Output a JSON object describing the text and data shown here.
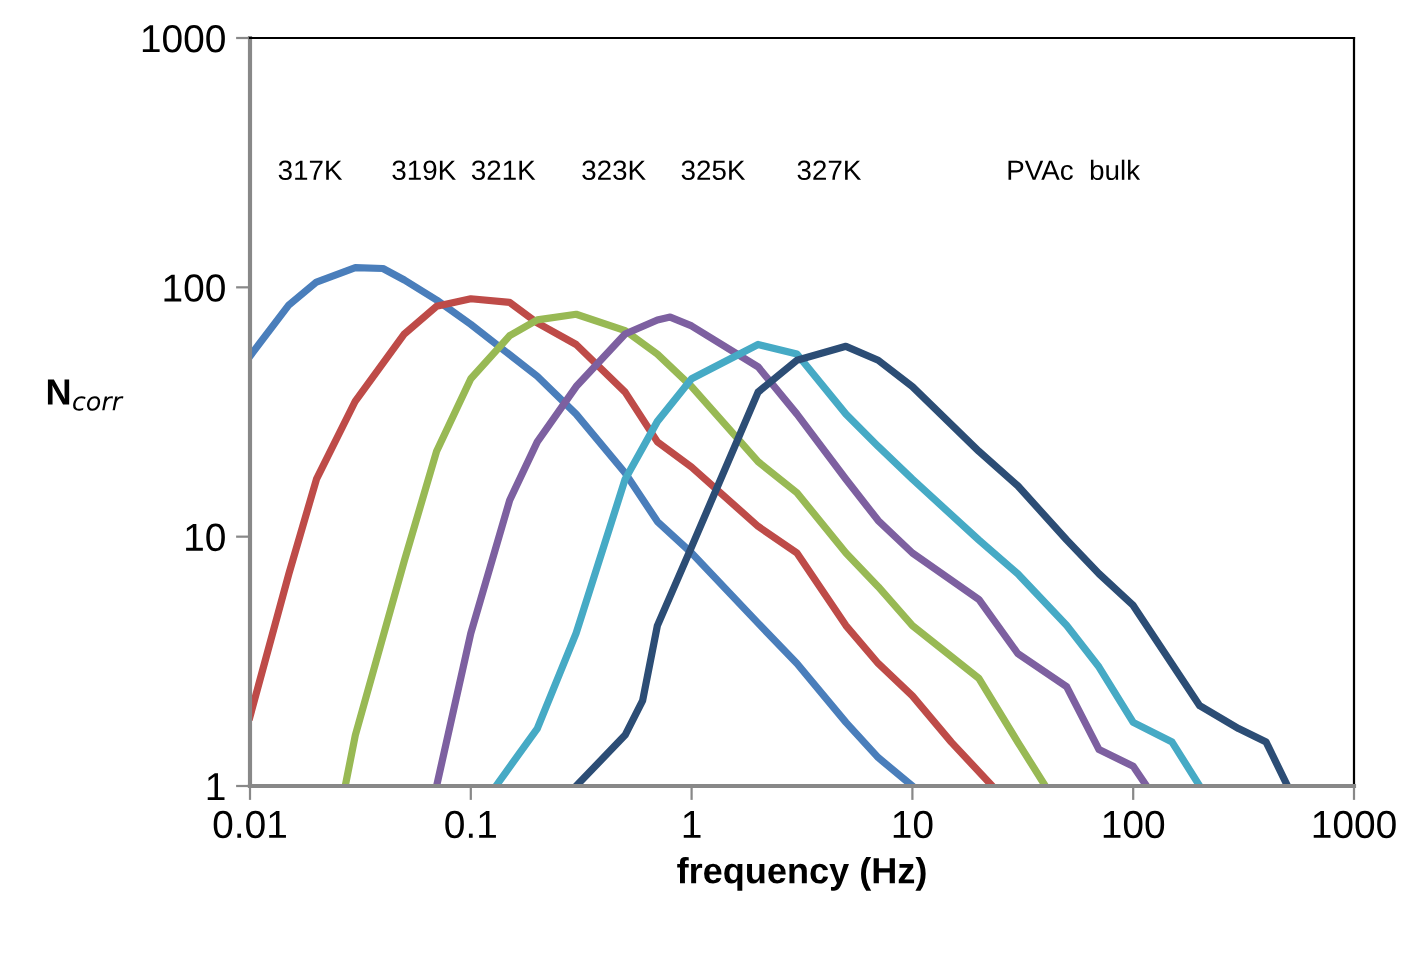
{
  "chart_data": {
    "type": "line",
    "xlabel": "frequency (Hz)",
    "ylabel": "N$_{corr}$",
    "log": "xy",
    "grid": false,
    "legend": false,
    "marker": "none",
    "line_style": "solid",
    "xlim": [
      0.01,
      1000
    ],
    "xticks": [
      0.01,
      0.1,
      1,
      10,
      100,
      1000
    ],
    "ylim": [
      1,
      1000
    ],
    "yticks": [
      1,
      10,
      100,
      1000
    ],
    "annotations": [
      "317K",
      "319K",
      "321K",
      "323K",
      "325K",
      "327K",
      "PVAc  bulk"
    ],
    "series": [
      {
        "color": "#4a7ebb",
        "x": [
          0.01,
          0.015,
          0.02,
          0.03,
          0.04,
          0.05,
          0.07,
          0.1,
          0.2,
          0.3,
          0.5,
          0.7,
          1,
          2,
          3,
          5,
          7,
          10
        ],
        "values": [
          53,
          85,
          105,
          120,
          119,
          107,
          89,
          71,
          44,
          31,
          18,
          11.5,
          8.6,
          4.5,
          3.1,
          1.8,
          1.3,
          1.0
        ]
      },
      {
        "color": "#be4b48",
        "x": [
          0.01,
          0.015,
          0.02,
          0.03,
          0.05,
          0.07,
          0.1,
          0.15,
          0.2,
          0.3,
          0.5,
          0.7,
          1,
          2,
          3,
          5,
          7,
          10,
          15,
          23
        ],
        "values": [
          1.9,
          7.1,
          17,
          35,
          65,
          84,
          90,
          87,
          72,
          59,
          38,
          24,
          19,
          11,
          8.6,
          4.4,
          3.1,
          2.3,
          1.5,
          1.0
        ]
      },
      {
        "color": "#98b954",
        "x": [
          0.027,
          0.03,
          0.05,
          0.07,
          0.1,
          0.15,
          0.2,
          0.3,
          0.5,
          0.7,
          1,
          2,
          3,
          5,
          7,
          10,
          20,
          30,
          40
        ],
        "values": [
          1.0,
          1.6,
          8,
          22,
          43,
          64,
          74,
          78,
          67,
          54,
          40,
          20,
          15,
          8.6,
          6.3,
          4.4,
          2.7,
          1.5,
          1.0
        ]
      },
      {
        "color": "#7d60a0",
        "x": [
          0.07,
          0.1,
          0.15,
          0.2,
          0.3,
          0.5,
          0.7,
          0.8,
          1,
          2,
          3,
          5,
          7,
          10,
          20,
          30,
          50,
          70,
          100,
          115
        ],
        "values": [
          1.0,
          4.1,
          14,
          24,
          40,
          65,
          74,
          76,
          70,
          48,
          31,
          17,
          11.6,
          8.6,
          5.6,
          3.4,
          2.5,
          1.4,
          1.2,
          1.0
        ]
      },
      {
        "color": "#46aac5",
        "x": [
          0.13,
          0.2,
          0.3,
          0.5,
          0.7,
          1,
          2,
          3,
          5,
          7,
          10,
          20,
          30,
          50,
          70,
          100,
          150,
          200
        ],
        "values": [
          1.0,
          1.7,
          4.1,
          17,
          29,
          43,
          59,
          54,
          31,
          23,
          17,
          9.7,
          7.1,
          4.4,
          3.0,
          1.8,
          1.5,
          1.0
        ]
      },
      {
        "color": "#2c4d75",
        "x": [
          0.3,
          0.5,
          0.6,
          0.7,
          1,
          2,
          3,
          5,
          7,
          10,
          20,
          30,
          50,
          70,
          100,
          200,
          300,
          400,
          500
        ],
        "values": [
          1.0,
          1.6,
          2.2,
          4.4,
          9.1,
          38,
          51,
          58,
          51,
          40,
          22,
          16,
          9.7,
          7.1,
          5.3,
          2.1,
          1.7,
          1.5,
          1.0
        ]
      }
    ]
  }
}
